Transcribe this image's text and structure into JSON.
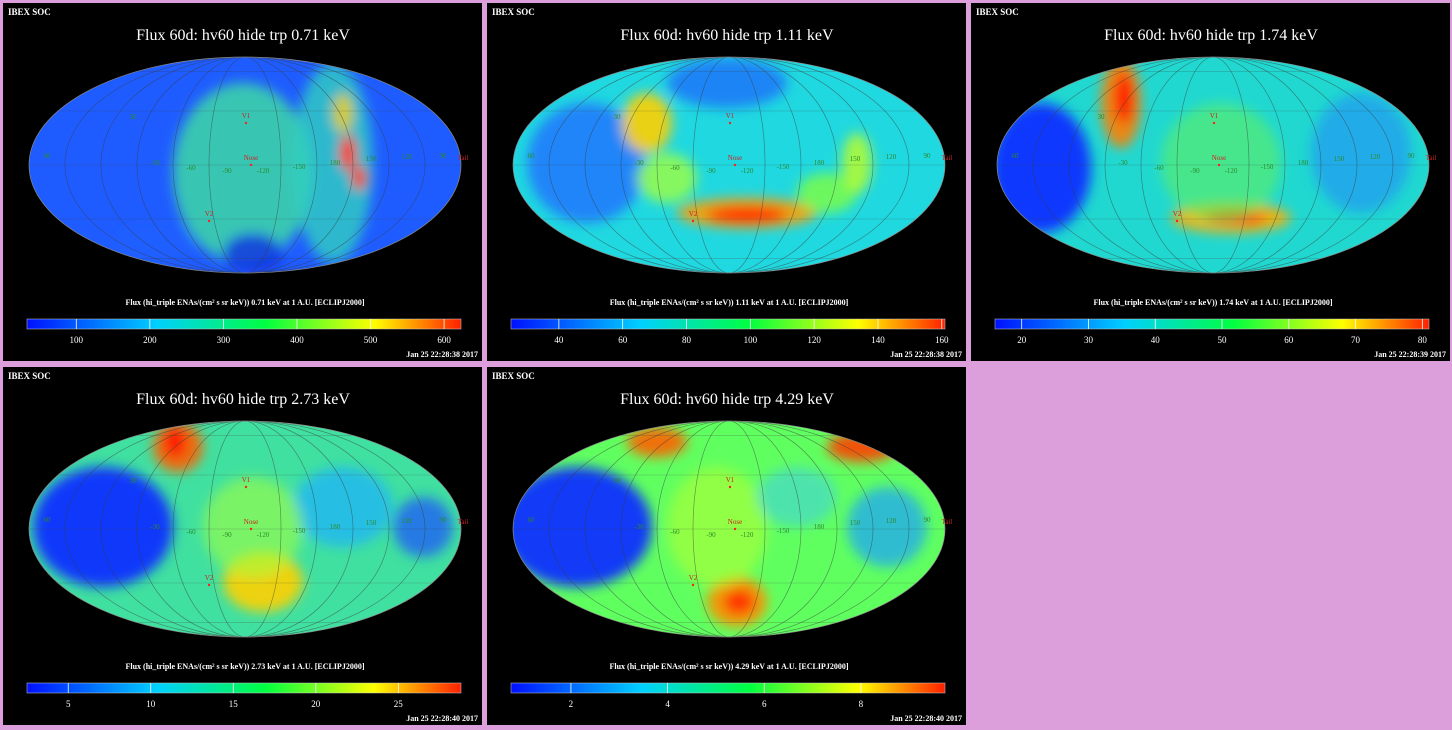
{
  "panels": [
    {
      "org": "IBEX SOC",
      "title": "Flux 60d: hv60 hide trp 0.71 keV",
      "colorbar": {
        "label": "Flux (hi_triple ENAs/(cm² s sr keV)) 0.71 keV at 1 A.U. [ECLIPJ2000]",
        "lim": [
          33,
          623
        ],
        "ticks": [
          100,
          200,
          300,
          400,
          500,
          600
        ]
      },
      "timestamp": "Jan 25 22:28:38 2017"
    },
    {
      "org": "IBEX SOC",
      "title": "Flux 60d: hv60 hide trp 1.11 keV",
      "colorbar": {
        "label": "Flux (hi_triple ENAs/(cm² s sr keV)) 1.11 keV at 1 A.U. [ECLIPJ2000]",
        "lim": [
          25,
          161
        ],
        "ticks": [
          40,
          60,
          80,
          100,
          120,
          140,
          160
        ]
      },
      "timestamp": "Jan 25 22:28:38 2017"
    },
    {
      "org": "IBEX SOC",
      "title": "Flux 60d: hv60 hide trp 1.74 keV",
      "colorbar": {
        "label": "Flux (hi_triple ENAs/(cm² s sr keV)) 1.74 keV at 1 A.U. [ECLIPJ2000]",
        "lim": [
          16,
          81
        ],
        "ticks": [
          20,
          30,
          40,
          50,
          60,
          70,
          80
        ]
      },
      "timestamp": "Jan 25 22:28:39 2017"
    },
    {
      "org": "IBEX SOC",
      "title": "Flux 60d: hv60 hide trp 2.73 keV",
      "colorbar": {
        "label": "Flux (hi_triple ENAs/(cm² s sr keV)) 2.73 keV at 1 A.U. [ECLIPJ2000]",
        "lim": [
          2.5,
          28.8
        ],
        "ticks": [
          5,
          10,
          15,
          20,
          25
        ]
      },
      "timestamp": "Jan 25 22:28:40 2017"
    },
    {
      "org": "IBEX SOC",
      "title": "Flux 60d: hv60 hide trp 4.29 keV",
      "colorbar": {
        "label": "Flux (hi_triple ENAs/(cm² s sr keV)) 4.29 keV at 1 A.U. [ECLIPJ2000]",
        "lim": [
          0.76,
          9.74
        ],
        "ticks": [
          2,
          4,
          6,
          8
        ]
      },
      "timestamp": "Jan 25 22:28:40 2017"
    }
  ],
  "map_labels": [
    "60",
    "30",
    "-30",
    "-60",
    "-90",
    "-120",
    "-150",
    "180",
    "150",
    "120",
    "90",
    "V1",
    "V2",
    "Nose",
    "Tail"
  ]
}
